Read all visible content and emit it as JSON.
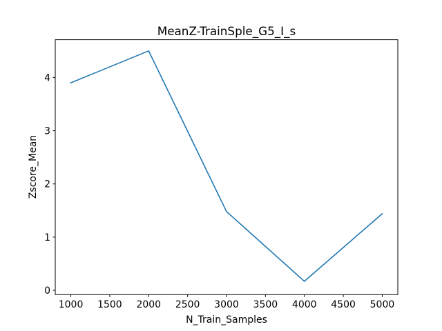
{
  "chart_data": {
    "type": "line",
    "title": "MeanZ-TrainSple_G5_I_s",
    "xlabel": "N_Train_Samples",
    "ylabel": "Zscore_Mean",
    "x": [
      1000,
      2000,
      3000,
      4000,
      5000
    ],
    "series": [
      {
        "values": [
          3.9,
          4.5,
          1.48,
          0.17,
          1.44
        ],
        "color": "#1f77b4"
      }
    ],
    "xlim": [
      800,
      5200
    ],
    "ylim": [
      -0.08,
      4.71
    ],
    "xticks": [
      1000,
      1500,
      2000,
      2500,
      3000,
      3500,
      4000,
      4500,
      5000
    ],
    "xtick_labels": [
      "1000",
      "1500",
      "2000",
      "2500",
      "3000",
      "3500",
      "4000",
      "4500",
      "5000"
    ],
    "yticks": [
      0,
      1,
      2,
      3,
      4
    ],
    "ytick_labels": [
      "0",
      "1",
      "2",
      "3",
      "4"
    ],
    "grid": false,
    "legend": "none"
  }
}
